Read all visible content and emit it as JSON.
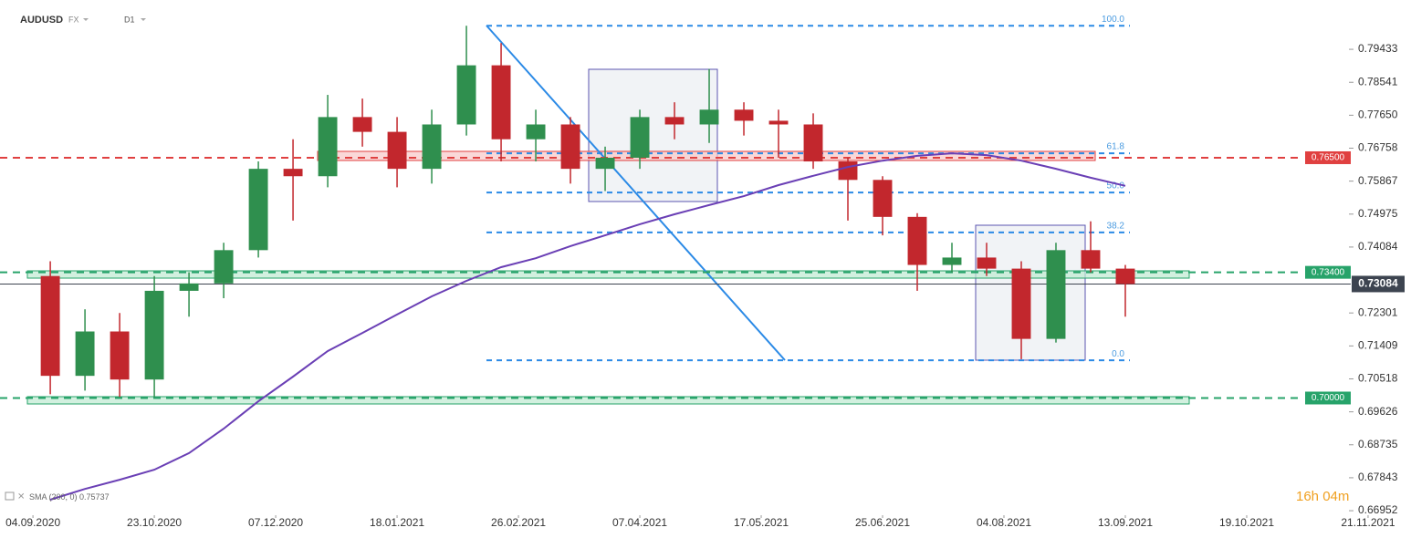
{
  "header": {
    "symbol": "AUDUSD",
    "market": "FX",
    "interval": "D1"
  },
  "timer": "16h 04m",
  "chart_data": {
    "type": "candlestick",
    "xlim": [
      -9.5,
      395.8
    ],
    "ylim": [
      0.6683,
      0.8052
    ],
    "xticks": [
      {
        "value": 0,
        "label": "04.09.2020"
      },
      {
        "value": 35,
        "label": "23.10.2020"
      },
      {
        "value": 70,
        "label": "07.12.2020"
      },
      {
        "value": 105,
        "label": "18.01.2021"
      },
      {
        "value": 140,
        "label": "26.02.2021"
      },
      {
        "value": 175,
        "label": "07.04.2021"
      },
      {
        "value": 210,
        "label": "17.05.2021"
      },
      {
        "value": 245,
        "label": "25.06.2021"
      },
      {
        "value": 280,
        "label": "04.08.2021"
      },
      {
        "value": 315,
        "label": "13.09.2021"
      },
      {
        "value": 350,
        "label": "19.10.2021"
      },
      {
        "value": 385,
        "label": "21.11.2021"
      }
    ],
    "yticks": [
      0.79433,
      0.78541,
      {
        "value": 0.7765,
        "label": "0.77650"
      },
      0.76758,
      0.75867,
      0.74975,
      0.74084,
      0.72301,
      0.71409,
      0.70518,
      0.69626,
      0.68735,
      0.67843,
      0.66952
    ],
    "up_color": "#2f8f4e",
    "down_color": "#c2272d",
    "x": [
      5,
      15,
      25,
      35,
      45,
      55,
      65,
      75,
      85,
      95,
      105,
      115,
      125,
      135,
      145,
      155,
      165,
      175,
      185,
      195,
      205,
      215,
      225,
      235,
      245,
      255,
      265,
      275,
      285,
      295,
      305,
      315
    ],
    "open": [
      0.733,
      0.706,
      0.718,
      0.705,
      0.729,
      0.731,
      0.74,
      0.762,
      0.76,
      0.776,
      0.772,
      0.762,
      0.774,
      0.79,
      0.77,
      0.774,
      0.762,
      0.765,
      0.776,
      0.774,
      0.778,
      0.775,
      0.774,
      0.764,
      0.759,
      0.749,
      0.736,
      0.738,
      0.735,
      0.716,
      0.74,
      0.735
    ],
    "high": [
      0.737,
      0.724,
      0.723,
      0.733,
      0.734,
      0.742,
      0.764,
      0.77,
      0.782,
      0.781,
      0.776,
      0.778,
      0.8007,
      0.796,
      0.778,
      0.776,
      0.768,
      0.778,
      0.78,
      0.789,
      0.78,
      0.778,
      0.777,
      0.765,
      0.76,
      0.75,
      0.742,
      0.742,
      0.737,
      0.742,
      0.7478,
      0.736
    ],
    "low": [
      0.701,
      0.702,
      0.7003,
      0.7002,
      0.722,
      0.727,
      0.738,
      0.748,
      0.757,
      0.768,
      0.757,
      0.758,
      0.771,
      0.764,
      0.764,
      0.758,
      0.756,
      0.762,
      0.77,
      0.769,
      0.771,
      0.765,
      0.762,
      0.748,
      0.744,
      0.729,
      0.734,
      0.733,
      0.7105,
      0.715,
      0.734,
      0.722
    ],
    "close": [
      0.706,
      0.718,
      0.705,
      0.729,
      0.731,
      0.74,
      0.762,
      0.76,
      0.776,
      0.772,
      0.762,
      0.774,
      0.79,
      0.77,
      0.774,
      0.762,
      0.765,
      0.776,
      0.774,
      0.778,
      0.775,
      0.774,
      0.764,
      0.759,
      0.749,
      0.736,
      0.738,
      0.735,
      0.716,
      0.74,
      0.735,
      0.73084
    ],
    "sma": {
      "name": "SMA (200, 0)",
      "last": 0.75737,
      "color": "#6a3fb5",
      "values": [
        0.6725,
        0.6754,
        0.6779,
        0.6806,
        0.6851,
        0.6917,
        0.6991,
        0.7058,
        0.7127,
        0.7176,
        0.7226,
        0.7275,
        0.7317,
        0.7354,
        0.7378,
        0.7411,
        0.744,
        0.747,
        0.7497,
        0.7522,
        0.7546,
        0.7576,
        0.7601,
        0.7625,
        0.7642,
        0.7655,
        0.7662,
        0.7657,
        0.7642,
        0.762,
        0.7596,
        0.7574
      ]
    },
    "levels": [
      {
        "value": 0.765,
        "label": "0.76500",
        "color": "#e04040"
      },
      {
        "value": 0.734,
        "label": "0.73400",
        "color": "#27a36a"
      },
      {
        "value": 0.7,
        "label": "0.70000",
        "color": "#27a36a"
      }
    ],
    "current": {
      "value": 0.73084,
      "label": "0.73084",
      "color": "#3d4450"
    },
    "fibonacci": [
      {
        "label": "100.0",
        "value": 0.8007
      },
      {
        "label": "61.8",
        "value": 0.7662
      },
      {
        "label": "50.0",
        "value": 0.7556
      },
      {
        "label": "38.2",
        "value": 0.7448
      },
      {
        "label": "0.0",
        "value": 0.7102
      }
    ],
    "fib_color": "#2b8ae6"
  }
}
